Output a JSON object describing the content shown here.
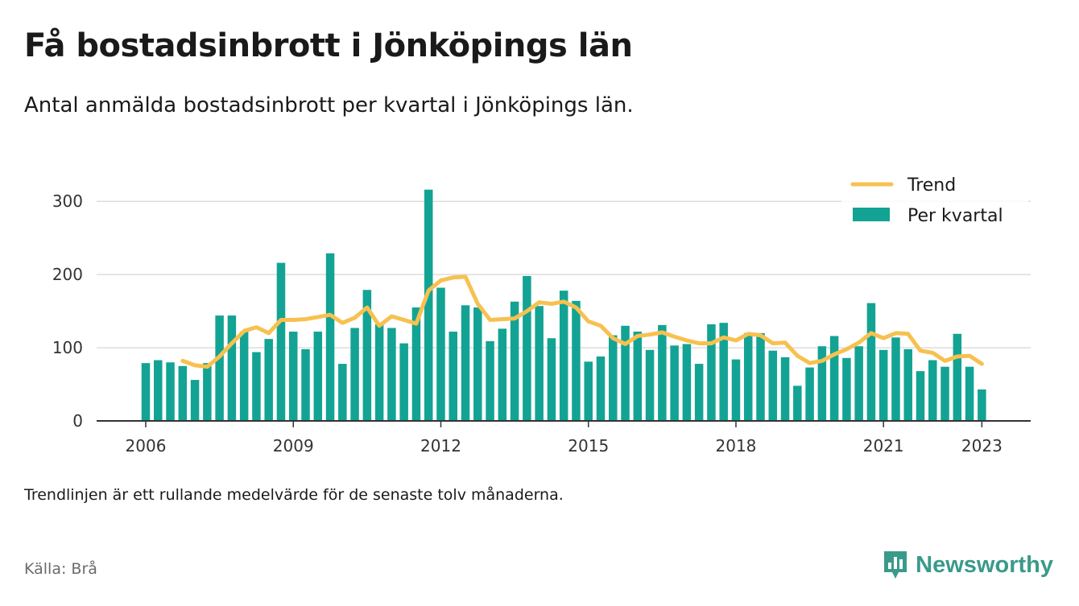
{
  "title": "Få bostadsinbrott i Jönköpings län",
  "subtitle": "Antal anmälda bostadsinbrott per kvartal i Jönköpings län.",
  "note": "Trendlinjen är ett rullande medelvärde för de senaste tolv månaderna.",
  "source": "Källa: Brå",
  "brand": {
    "name": "Newsworthy",
    "icon": "newsworthy-logo-icon"
  },
  "colors": {
    "bar": "#13a394",
    "trend": "#f7c150",
    "grid": "#dddddd",
    "axis": "#333333"
  },
  "chart_data": {
    "type": "bar",
    "x_start": "2006 Q1",
    "ylim": [
      0,
      330
    ],
    "yticks": [
      0,
      100,
      200,
      300
    ],
    "xticks": [
      "2006",
      "2009",
      "2012",
      "2015",
      "2018",
      "2021",
      "2023"
    ],
    "grid": true,
    "legend_position": "top-right",
    "series": [
      {
        "name": "Per kvartal",
        "type": "bar",
        "values": [
          79,
          83,
          80,
          75,
          56,
          79,
          144,
          144,
          122,
          94,
          112,
          216,
          122,
          98,
          122,
          229,
          78,
          127,
          179,
          132,
          127,
          106,
          155,
          316,
          182,
          122,
          158,
          155,
          109,
          126,
          163,
          198,
          157,
          113,
          178,
          164,
          81,
          88,
          117,
          130,
          122,
          97,
          131,
          103,
          105,
          78,
          132,
          134,
          84,
          120,
          120,
          96,
          87,
          48,
          73,
          102,
          116,
          86,
          102,
          161,
          97,
          114,
          98,
          68,
          83,
          74,
          119,
          74,
          43
        ]
      },
      {
        "name": "Trend",
        "type": "line",
        "values": [
          null,
          null,
          null,
          82,
          76,
          74,
          88,
          106,
          123,
          128,
          120,
          138,
          138,
          139,
          142,
          145,
          134,
          141,
          155,
          130,
          143,
          138,
          133,
          178,
          192,
          196,
          197,
          160,
          138,
          139,
          140,
          150,
          162,
          160,
          163,
          155,
          136,
          130,
          113,
          105,
          116,
          118,
          121,
          115,
          110,
          106,
          106,
          114,
          110,
          119,
          117,
          106,
          107,
          89,
          79,
          82,
          91,
          98,
          107,
          120,
          113,
          120,
          119,
          96,
          93,
          82,
          88,
          89,
          78
        ]
      }
    ]
  }
}
